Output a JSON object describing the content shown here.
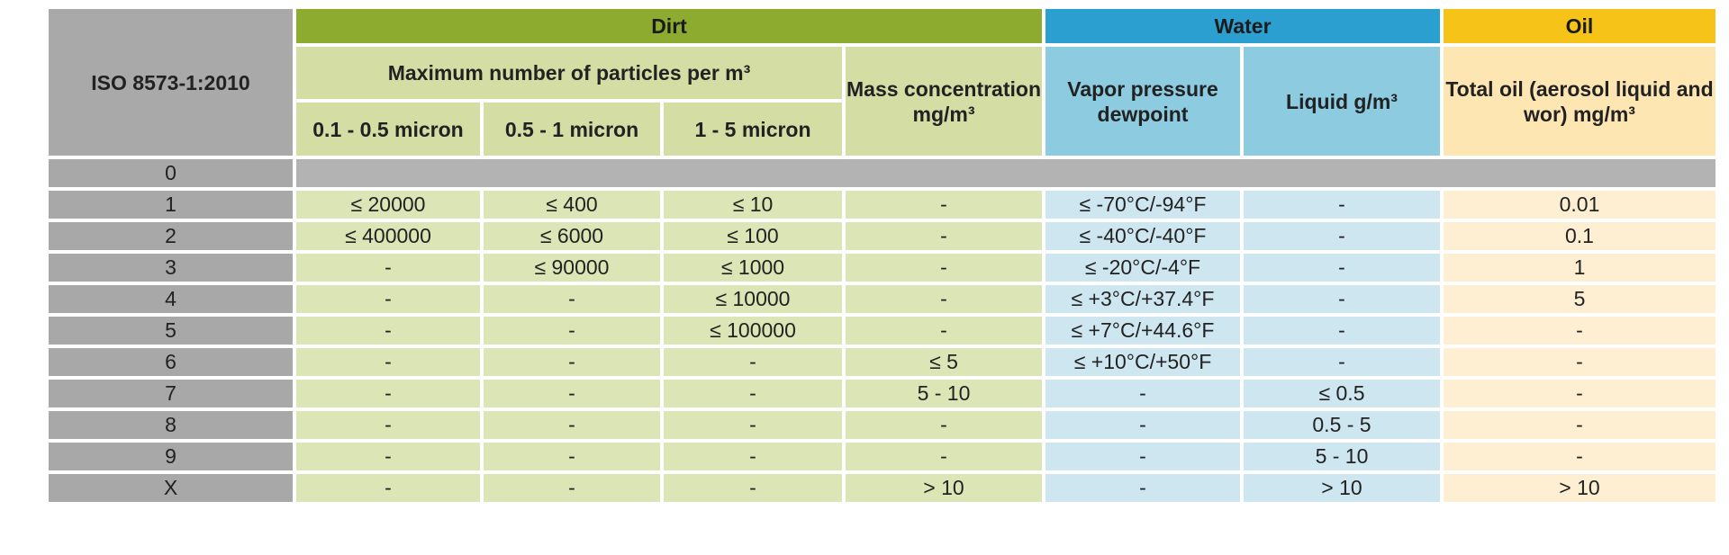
{
  "header": {
    "standard": "ISO 8573-1:2010",
    "dirt": "Dirt",
    "water": "Water",
    "oil": "Oil",
    "particles": "Maximum number of particles per m³",
    "mass": "Mass concentration mg/m³",
    "sizes": [
      "0.1 - 0.5 micron",
      "0.5 - 1 micron",
      "1 - 5 micron"
    ],
    "vapor": "Vapor pressure dewpoint",
    "liquid": "Liquid g/m³",
    "total_oil": "Total oil (aerosol liquid and wor) mg/m³"
  },
  "table": {
    "rows": [
      [
        "0"
      ],
      [
        "1",
        "≤ 20000",
        "≤ 400",
        "≤ 10",
        "-",
        "≤ -70°C/-94°F",
        "-",
        "0.01"
      ],
      [
        "2",
        "≤ 400000",
        "≤ 6000",
        "≤ 100",
        "-",
        "≤ -40°C/-40°F",
        "-",
        "0.1"
      ],
      [
        "3",
        "-",
        "≤ 90000",
        "≤ 1000",
        "-",
        "≤ -20°C/-4°F",
        "-",
        "1"
      ],
      [
        "4",
        "-",
        "-",
        "≤ 10000",
        "-",
        "≤ +3°C/+37.4°F",
        "-",
        "5"
      ],
      [
        "5",
        "-",
        "-",
        "≤ 100000",
        "-",
        "≤ +7°C/+44.6°F",
        "-",
        "-"
      ],
      [
        "6",
        "-",
        "-",
        "-",
        "≤ 5",
        "≤ +10°C/+50°F",
        "-",
        "-"
      ],
      [
        "7",
        "-",
        "-",
        "-",
        "5 - 10",
        "-",
        "≤ 0.5",
        "-"
      ],
      [
        "8",
        "-",
        "-",
        "-",
        "-",
        "-",
        "0.5 - 5",
        "-"
      ],
      [
        "9",
        "-",
        "-",
        "-",
        "-",
        "-",
        "5 - 10",
        "-"
      ],
      [
        "X",
        "-",
        "-",
        "-",
        "> 10",
        "-",
        "> 10",
        "> 10"
      ]
    ]
  }
}
